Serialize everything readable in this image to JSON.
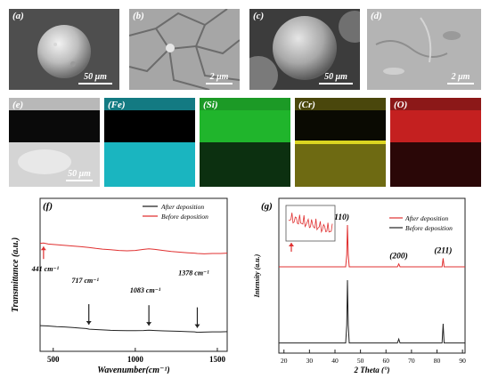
{
  "panels_top": [
    {
      "label": "(a)",
      "scale": "50 μm"
    },
    {
      "label": "(b)",
      "scale": "2 μm"
    },
    {
      "label": "(c)",
      "scale": "50 μm"
    },
    {
      "label": "(d)",
      "scale": "2 μm"
    }
  ],
  "panels_map": [
    {
      "label": "(e)",
      "scale": "50 μm",
      "tint": "#8a8a8a"
    },
    {
      "label": "(Fe)",
      "tint": "#19b8c4"
    },
    {
      "label": "(Si)",
      "tint": "#1fb32a"
    },
    {
      "label": "(Cr)",
      "tint": "#b8b21a"
    },
    {
      "label": "(O)",
      "tint": "#c42020"
    }
  ],
  "chart_data": [
    {
      "panel": "(f)",
      "type": "line",
      "xlabel": "Wavenumber(cm⁻¹)",
      "ylabel": "Transmittance (a.u.)",
      "xlim": [
        420,
        1560
      ],
      "xticks": [
        500,
        1000,
        1500
      ],
      "legend_position": "top-right",
      "series": [
        {
          "name": "After deposition",
          "color": "#222222",
          "x": [
            420,
            470,
            520,
            570,
            620,
            670,
            700,
            720,
            760,
            800,
            850,
            900,
            950,
            1000,
            1050,
            1083,
            1120,
            1170,
            1220,
            1270,
            1320,
            1360,
            1378,
            1420,
            1470,
            1520,
            1560
          ],
          "y": [
            0.05,
            0.07,
            0.1,
            0.12,
            0.15,
            0.18,
            0.2,
            0.23,
            0.25,
            0.27,
            0.29,
            0.3,
            0.31,
            0.31,
            0.3,
            0.28,
            0.3,
            0.32,
            0.33,
            0.34,
            0.36,
            0.37,
            0.39,
            0.38,
            0.37,
            0.37,
            0.36
          ]
        },
        {
          "name": "Before deposition",
          "color": "#e03030",
          "x": [
            420,
            441,
            470,
            520,
            570,
            620,
            670,
            717,
            760,
            800,
            850,
            900,
            950,
            1000,
            1050,
            1083,
            1120,
            1170,
            1220,
            1270,
            1320,
            1360,
            1378,
            1420,
            1470,
            1520,
            1560
          ],
          "y": [
            0.7,
            0.69,
            0.72,
            0.74,
            0.76,
            0.78,
            0.8,
            0.82,
            0.85,
            0.87,
            0.89,
            0.91,
            0.92,
            0.91,
            0.88,
            0.86,
            0.88,
            0.91,
            0.94,
            0.96,
            0.98,
            0.99,
            1.0,
            1.01,
            1.0,
            1.0,
            0.99
          ]
        }
      ],
      "annotations": [
        {
          "text": "441 cm⁻¹",
          "x": 441,
          "series": "Before deposition"
        },
        {
          "text": "717 cm⁻¹",
          "x": 717,
          "series": "After deposition"
        },
        {
          "text": "1083 cm⁻¹",
          "x": 1083,
          "series": "After deposition"
        },
        {
          "text": "1378 cm⁻¹",
          "x": 1378,
          "series": "After deposition"
        }
      ]
    },
    {
      "panel": "(g)",
      "type": "line",
      "xlabel": "2 Theta (°)",
      "ylabel": "Intensity (a.u.)",
      "xlim": [
        18,
        91
      ],
      "xticks": [
        20,
        30,
        40,
        50,
        60,
        70,
        80,
        90
      ],
      "legend_position": "top-right",
      "series": [
        {
          "name": "After deposition",
          "color": "#e03030",
          "x": [
            18,
            44.2,
            44.6,
            44.9,
            45.2,
            45.6,
            64.5,
            65.0,
            65.5,
            82.0,
            82.4,
            82.8,
            91
          ],
          "y": [
            0.02,
            0.02,
            0.3,
            1.0,
            0.3,
            0.02,
            0.02,
            0.09,
            0.02,
            0.02,
            0.22,
            0.02,
            0.02
          ]
        },
        {
          "name": "Before deposition",
          "color": "#222222",
          "x": [
            18,
            44.2,
            44.6,
            44.9,
            45.2,
            45.6,
            64.5,
            65.0,
            65.5,
            82.0,
            82.4,
            82.8,
            91
          ],
          "y": [
            0.02,
            0.02,
            0.3,
            1.0,
            0.3,
            0.02,
            0.02,
            0.08,
            0.02,
            0.02,
            0.32,
            0.02,
            0.02
          ]
        }
      ],
      "annotations": [
        {
          "text": "(110)",
          "x": 44.9
        },
        {
          "text": "(200)",
          "x": 65.0
        },
        {
          "text": "(211)",
          "x": 82.4
        }
      ]
    }
  ]
}
